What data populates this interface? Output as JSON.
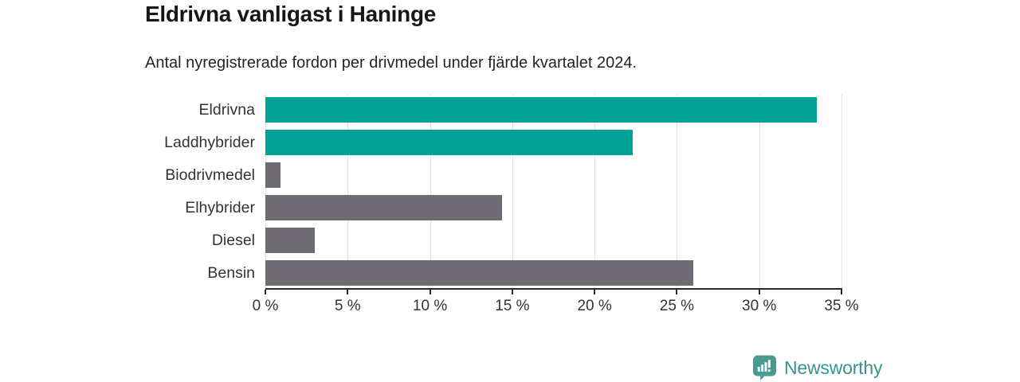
{
  "header": {
    "title": "Eldrivna vanligast i Haninge",
    "subtitle": "Antal nyregistrerade fordon per drivmedel under fjärde kvartalet 2024."
  },
  "chart_data": {
    "type": "bar",
    "orientation": "horizontal",
    "title": "Eldrivna vanligast i Haninge",
    "subtitle": "Antal nyregistrerade fordon per drivmedel under fjärde kvartalet 2024.",
    "categories": [
      "Eldrivna",
      "Laddhybrider",
      "Biodrivmedel",
      "Elhybrider",
      "Diesel",
      "Bensin"
    ],
    "values": [
      33.5,
      22.3,
      0.9,
      14.4,
      3.0,
      26.0
    ],
    "unit": "%",
    "xlim": [
      0,
      35
    ],
    "x_tick_values": [
      0,
      5,
      10,
      15,
      20,
      25,
      30,
      35
    ],
    "x_tick_labels": [
      "0 %",
      "5 %",
      "10 %",
      "15 %",
      "20 %",
      "25 %",
      "30 %",
      "35 %"
    ],
    "bar_colors": [
      "#00a296",
      "#00a296",
      "#6e6c72",
      "#6e6c72",
      "#6e6c72",
      "#6e6c72"
    ],
    "highlight_color": "#00a296",
    "default_color": "#6e6c72",
    "grid": true,
    "legend": "none",
    "data_labels": "none"
  },
  "footer": {
    "brand": "Newsworthy",
    "brand_color": "#38948b",
    "icon_color": "#4a9c93"
  }
}
